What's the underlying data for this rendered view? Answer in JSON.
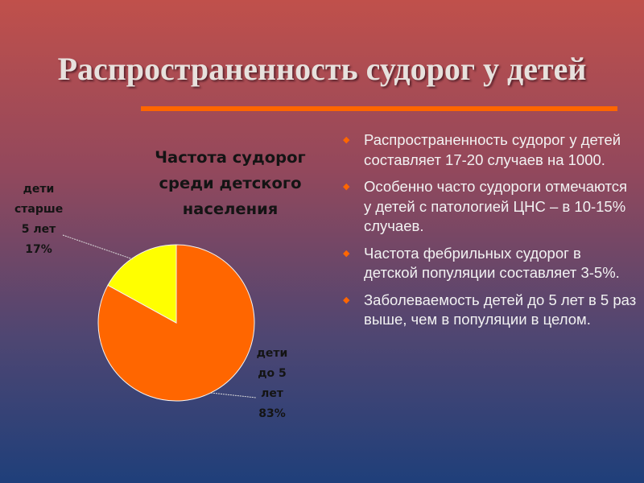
{
  "slide": {
    "title": "Распространенность судорог у детей",
    "background_top": "#c0504b",
    "background_bottom": "#1f3f7a",
    "accent": "#ff6600"
  },
  "chart_data": {
    "type": "pie",
    "title_lines": [
      "Частота судорог",
      "среди детского",
      "населения"
    ],
    "slices": [
      {
        "label_lines": [
          "дети",
          "до 5",
          "лет",
          "83%"
        ],
        "value": 83,
        "color": "#ff6600"
      },
      {
        "label_lines": [
          "дети",
          "старше",
          "5 лет",
          "17%"
        ],
        "value": 17,
        "color": "#ffff00"
      }
    ]
  },
  "bullets": {
    "icon": "bullet-icon",
    "items": [
      "Распространенность судорог у детей составляет 17-20 случаев на 1000.",
      "Особенно часто судороги отмечаются у детей с патологией ЦНС – в 10-15% случаев.",
      "Частота фебрильных судорог в детской популяции составляет 3-5%.",
      "Заболеваемость детей до 5 лет в 5 раз выше, чем в популяции в целом."
    ]
  }
}
